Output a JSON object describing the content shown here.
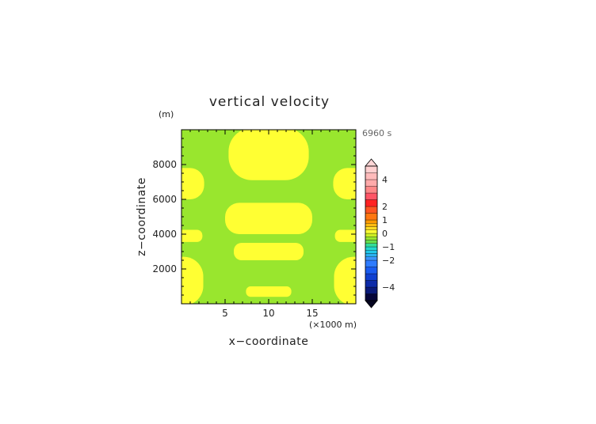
{
  "chart_data": {
    "type": "heatmap",
    "title": "vertical velocity",
    "time_label": "6960 s",
    "xlabel": "x−coordinate",
    "x_unit": "(×1000 m)",
    "ylabel": "z−coordinate",
    "y_unit": "(m)",
    "xlim": [
      0,
      20
    ],
    "ylim": [
      0,
      10000
    ],
    "x_ticks": [
      5,
      10,
      15
    ],
    "x_tick_labels": [
      "5",
      "10",
      "15"
    ],
    "y_ticks": [
      2000,
      4000,
      6000,
      8000
    ],
    "y_tick_labels": [
      "2000",
      "4000",
      "6000",
      "8000"
    ],
    "grid": false,
    "background_level_color": "#99e62e",
    "region_color": "#ffff33",
    "regions": [
      {
        "cx": 10,
        "cy": 8600,
        "rx": 4.6,
        "ry": 1500
      },
      {
        "cx": 10,
        "cy": 4900,
        "rx": 5.0,
        "ry": 900
      },
      {
        "cx": 10,
        "cy": 3000,
        "rx": 4.0,
        "ry": 500
      },
      {
        "cx": 10,
        "cy": 700,
        "rx": 2.6,
        "ry": 300
      },
      {
        "cx": 0,
        "cy": 6900,
        "rx": 2.6,
        "ry": 900
      },
      {
        "cx": 20,
        "cy": 6900,
        "rx": 2.6,
        "ry": 900
      },
      {
        "cx": 0,
        "cy": 3900,
        "rx": 2.4,
        "ry": 350
      },
      {
        "cx": 20,
        "cy": 3900,
        "rx": 2.4,
        "ry": 350
      },
      {
        "cx": 0,
        "cy": 1300,
        "rx": 2.5,
        "ry": 1400
      },
      {
        "cx": 20,
        "cy": 1300,
        "rx": 2.5,
        "ry": 1400
      }
    ],
    "colorbar": {
      "levels": [
        -5,
        -4.5,
        -4,
        -3.5,
        -3,
        -2.5,
        -2,
        -1.75,
        -1.5,
        -1.25,
        -1,
        -0.75,
        -0.5,
        -0.25,
        0,
        0.25,
        0.5,
        0.75,
        1,
        1.5,
        2,
        2.5,
        3,
        3.5,
        4,
        4.5,
        5
      ],
      "colors": [
        "#06063a",
        "#0a1a7a",
        "#0d2ba8",
        "#1040d0",
        "#1a5cf0",
        "#2f7cff",
        "#3a94ff",
        "#2ab0f0",
        "#20c8e8",
        "#22d8d0",
        "#33dd99",
        "#66e04d",
        "#99e62e",
        "#ccee22",
        "#ffff33",
        "#ffdd22",
        "#ffbb11",
        "#ff9900",
        "#ff7711",
        "#ff5522",
        "#ff2222",
        "#ff5566",
        "#ff8888",
        "#ffaaaa",
        "#ffbbbb",
        "#ffd0d0"
      ],
      "tick_values": [
        4,
        2,
        1,
        0,
        -1,
        -2,
        -4
      ],
      "tick_labels": [
        "4",
        "2",
        "1",
        "0",
        "−1",
        "−2",
        "−4"
      ],
      "extend": "both",
      "extend_max_color": "#ffd6d6",
      "extend_min_color": "#050520"
    }
  }
}
